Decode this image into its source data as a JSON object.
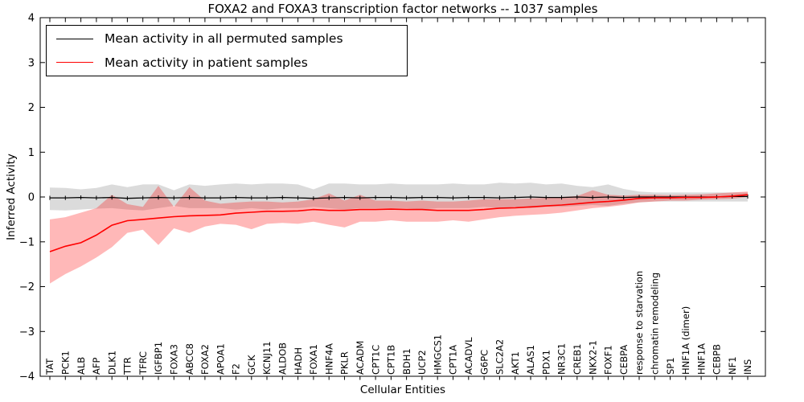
{
  "figure": {
    "title": "FOXA2 and FOXA3 transcription factor networks -- 1037 samples",
    "xlabel": "Cellular Entities",
    "ylabel": "Inferred Activity"
  },
  "legend": {
    "position": "upper left",
    "entries": [
      {
        "label": "Mean activity in all permuted samples",
        "color": "#000000"
      },
      {
        "label": "Mean activity in patient samples",
        "color": "#ff0000"
      }
    ]
  },
  "colors": {
    "permuted_line": "#000000",
    "patient_line": "#ff0000",
    "permuted_band": "rgba(0,0,0,0.14)",
    "patient_band": "rgba(255,0,0,0.28)",
    "frame": "#000000"
  },
  "chart_data": {
    "type": "line",
    "title": "FOXA2 and FOXA3 transcription factor networks -- 1037 samples",
    "xlabel": "Cellular Entities",
    "ylabel": "Inferred Activity",
    "ylim": [
      -4,
      4
    ],
    "yticks": [
      4,
      3,
      2,
      1,
      0,
      -1,
      -2,
      -3,
      -4
    ],
    "grid": false,
    "legend_position": "upper left",
    "categories": [
      "TAT",
      "PCK1",
      "ALB",
      "AFP",
      "DLK1",
      "TTR",
      "TFRC",
      "IGFBP1",
      "FOXA3",
      "ABCC8",
      "FOXA2",
      "APOA1",
      "F2",
      "GCK",
      "KCNJ11",
      "ALDOB",
      "HADH",
      "FOXA1",
      "HNF4A",
      "PKLR",
      "ACADM",
      "CPT1C",
      "CPT1B",
      "BDH1",
      "UCP2",
      "HMGCS1",
      "CPT1A",
      "ACADVL",
      "G6PC",
      "SLC2A2",
      "AKT1",
      "ALAS1",
      "PDX1",
      "NR3C1",
      "CREB1",
      "NKX2-1",
      "FOXF1",
      "CEBPA",
      "response to starvation",
      "chromatin remodeling",
      "SP1",
      "HNF1A (dimer)",
      "HNF1A",
      "CEBPB",
      "NF1",
      "INS"
    ],
    "series": [
      {
        "name": "Mean activity in all permuted samples",
        "values": [
          -0.02,
          -0.02,
          -0.01,
          -0.02,
          -0.01,
          -0.03,
          -0.02,
          -0.01,
          -0.02,
          -0.01,
          -0.02,
          -0.02,
          -0.01,
          -0.02,
          -0.02,
          -0.01,
          -0.02,
          -0.03,
          -0.02,
          -0.01,
          -0.02,
          -0.01,
          -0.01,
          -0.02,
          -0.01,
          -0.01,
          -0.02,
          -0.01,
          -0.01,
          -0.02,
          -0.01,
          0.0,
          -0.01,
          -0.01,
          0.0,
          -0.01,
          0.0,
          -0.01,
          0.0,
          0.0,
          0.0,
          0.0,
          0.0,
          0.0,
          0.01,
          0.01
        ],
        "band_low": [
          -0.29,
          -0.3,
          -0.28,
          -0.26,
          -0.25,
          -0.28,
          -0.3,
          -0.25,
          -0.2,
          -0.25,
          -0.25,
          -0.25,
          -0.28,
          -0.25,
          -0.28,
          -0.25,
          -0.25,
          -0.22,
          -0.25,
          -0.28,
          -0.25,
          -0.25,
          -0.25,
          -0.25,
          -0.28,
          -0.25,
          -0.25,
          -0.25,
          -0.22,
          -0.25,
          -0.22,
          -0.25,
          -0.22,
          -0.22,
          -0.2,
          -0.18,
          -0.2,
          -0.15,
          -0.12,
          -0.1,
          -0.1,
          -0.1,
          -0.1,
          -0.1,
          -0.1,
          -0.1
        ],
        "band_high": [
          0.21,
          0.2,
          0.17,
          0.2,
          0.28,
          0.22,
          0.28,
          0.28,
          0.15,
          0.28,
          0.25,
          0.28,
          0.3,
          0.28,
          0.3,
          0.3,
          0.28,
          0.17,
          0.3,
          0.3,
          0.28,
          0.28,
          0.3,
          0.28,
          0.28,
          0.28,
          0.3,
          0.28,
          0.28,
          0.32,
          0.3,
          0.32,
          0.28,
          0.3,
          0.25,
          0.22,
          0.28,
          0.18,
          0.12,
          0.1,
          0.1,
          0.1,
          0.1,
          0.1,
          0.1,
          0.1
        ]
      },
      {
        "name": "Mean activity in patient samples",
        "values": [
          -1.22,
          -1.1,
          -1.02,
          -0.85,
          -0.63,
          -0.53,
          -0.5,
          -0.47,
          -0.44,
          -0.42,
          -0.41,
          -0.4,
          -0.36,
          -0.34,
          -0.32,
          -0.32,
          -0.31,
          -0.28,
          -0.3,
          -0.3,
          -0.28,
          -0.28,
          -0.27,
          -0.28,
          -0.28,
          -0.3,
          -0.3,
          -0.3,
          -0.28,
          -0.25,
          -0.24,
          -0.22,
          -0.2,
          -0.18,
          -0.15,
          -0.12,
          -0.1,
          -0.07,
          -0.03,
          -0.02,
          -0.02,
          -0.01,
          -0.01,
          0.0,
          0.02,
          0.05
        ],
        "band_low": [
          -1.93,
          -1.72,
          -1.55,
          -1.35,
          -1.12,
          -0.8,
          -0.73,
          -1.07,
          -0.7,
          -0.8,
          -0.66,
          -0.6,
          -0.62,
          -0.72,
          -0.6,
          -0.58,
          -0.6,
          -0.55,
          -0.62,
          -0.68,
          -0.55,
          -0.55,
          -0.52,
          -0.55,
          -0.55,
          -0.55,
          -0.52,
          -0.55,
          -0.5,
          -0.45,
          -0.42,
          -0.4,
          -0.38,
          -0.35,
          -0.3,
          -0.25,
          -0.22,
          -0.18,
          -0.12,
          -0.1,
          -0.08,
          -0.08,
          -0.06,
          -0.05,
          -0.04,
          0.0
        ],
        "band_high": [
          -0.5,
          -0.45,
          -0.35,
          -0.25,
          0.05,
          -0.16,
          -0.22,
          0.25,
          -0.22,
          0.22,
          -0.08,
          -0.15,
          -0.12,
          -0.1,
          -0.1,
          -0.12,
          -0.1,
          -0.05,
          0.08,
          -0.08,
          0.05,
          -0.08,
          -0.08,
          -0.1,
          -0.08,
          -0.1,
          -0.1,
          -0.08,
          -0.05,
          -0.05,
          -0.05,
          -0.03,
          -0.02,
          0.0,
          0.02,
          0.15,
          0.05,
          0.03,
          0.05,
          0.05,
          0.04,
          0.05,
          0.06,
          0.08,
          0.1,
          0.12
        ]
      }
    ]
  }
}
